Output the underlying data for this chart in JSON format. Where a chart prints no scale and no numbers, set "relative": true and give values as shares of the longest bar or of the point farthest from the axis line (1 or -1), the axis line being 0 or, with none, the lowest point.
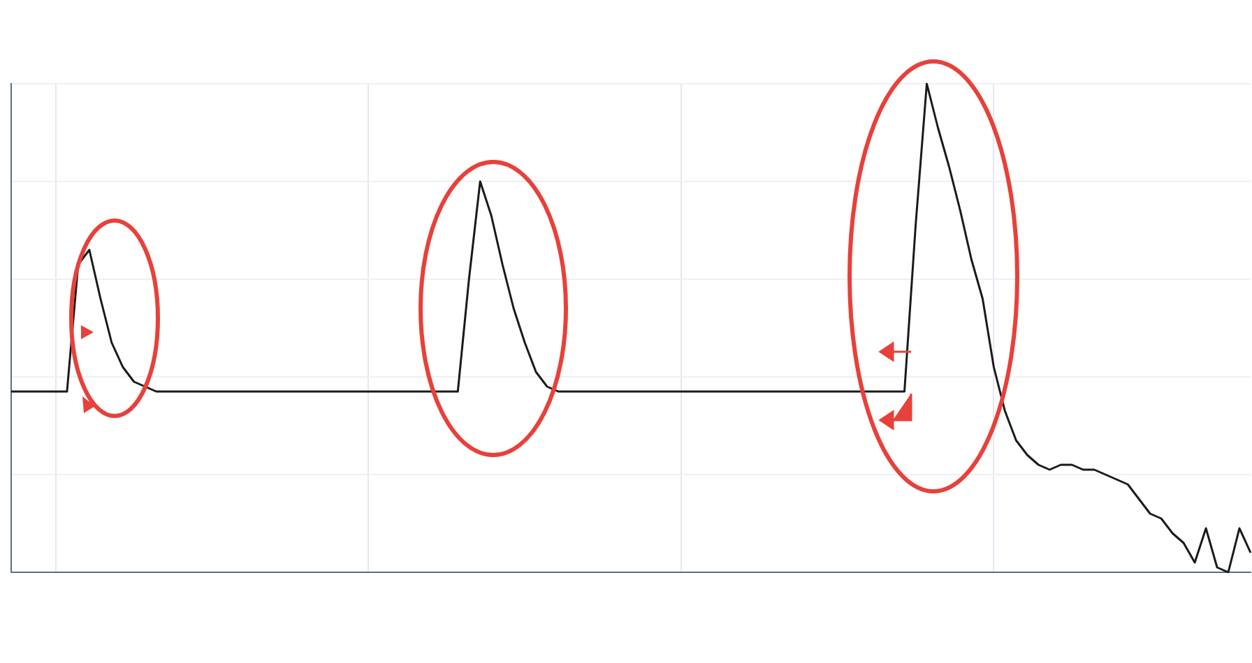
{
  "chart_data": {
    "type": "line",
    "relative": true,
    "grid": true,
    "marker": "none",
    "line_style": "solid",
    "categories": [
      null,
      null,
      null,
      null,
      null,
      null,
      null,
      null,
      null,
      null,
      null,
      null,
      null,
      null,
      null,
      null,
      null,
      null,
      null,
      null,
      null,
      null,
      null,
      null,
      null,
      null,
      null,
      null,
      null,
      null,
      null,
      null,
      null,
      null,
      null,
      null,
      null,
      null,
      null,
      null,
      null,
      null,
      null,
      null,
      null,
      null,
      null,
      null,
      null,
      null,
      null,
      null,
      null,
      null,
      null,
      null,
      null,
      null,
      null,
      null,
      null,
      null,
      null,
      null,
      null,
      null,
      null,
      null,
      null,
      null,
      null,
      null,
      null,
      null,
      null,
      null,
      null,
      null,
      null,
      null,
      null,
      null,
      null,
      null,
      null,
      null,
      null,
      null,
      null,
      null,
      null,
      null,
      null,
      null,
      null,
      null,
      null,
      null,
      null,
      null,
      null,
      null,
      null,
      null,
      null,
      null,
      null,
      null,
      null,
      null,
      null,
      null
    ],
    "series": [
      {
        "color": "#1a1a1a",
        "values": [
          0.37,
          0.37,
          0.37,
          0.37,
          0.37,
          0.37,
          0.63,
          0.66,
          0.56,
          0.47,
          0.42,
          0.39,
          0.38,
          0.37,
          0.37,
          0.37,
          0.37,
          0.37,
          0.37,
          0.37,
          0.37,
          0.37,
          0.37,
          0.37,
          0.37,
          0.37,
          0.37,
          0.37,
          0.37,
          0.37,
          0.37,
          0.37,
          0.37,
          0.37,
          0.37,
          0.37,
          0.37,
          0.37,
          0.37,
          0.37,
          0.37,
          0.6,
          0.8,
          0.73,
          0.63,
          0.54,
          0.47,
          0.41,
          0.38,
          0.37,
          0.37,
          0.37,
          0.37,
          0.37,
          0.37,
          0.37,
          0.37,
          0.37,
          0.37,
          0.37,
          0.37,
          0.37,
          0.37,
          0.37,
          0.37,
          0.37,
          0.37,
          0.37,
          0.37,
          0.37,
          0.37,
          0.37,
          0.37,
          0.37,
          0.37,
          0.37,
          0.37,
          0.37,
          0.37,
          0.37,
          0.37,
          0.71,
          1,
          0.91,
          0.83,
          0.74,
          0.64,
          0.56,
          0.42,
          0.33,
          0.27,
          0.24,
          0.22,
          0.21,
          0.22,
          0.22,
          0.21,
          0.21,
          0.2,
          0.19,
          0.18,
          0.15,
          0.12,
          0.11,
          0.08,
          0.06,
          0.02,
          0.09,
          0.01,
          0,
          0.09,
          0.04
        ]
      }
    ]
  }
}
